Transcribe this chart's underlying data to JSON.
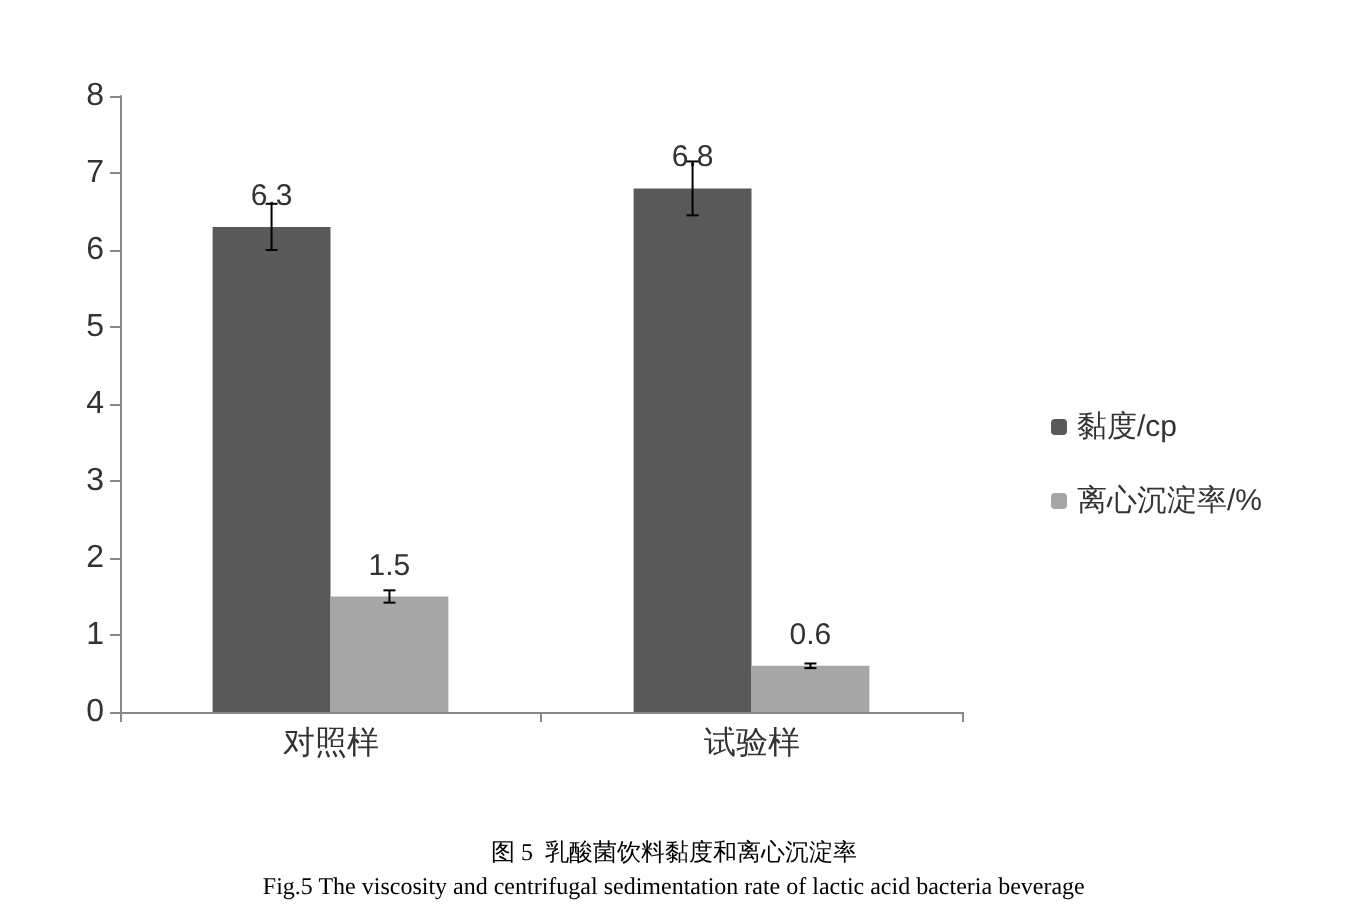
{
  "chart_data": {
    "type": "bar",
    "categories": [
      "对照样",
      "试验样"
    ],
    "series": [
      {
        "name": "黏度/cp",
        "color": "#595959",
        "values": [
          6.3,
          6.8
        ],
        "errors": [
          0.3,
          0.35
        ]
      },
      {
        "name": "离心沉淀率/%",
        "color": "#a6a6a6",
        "values": [
          1.5,
          0.6
        ],
        "errors": [
          0.08,
          0.03
        ]
      }
    ],
    "ylim": [
      0,
      8
    ],
    "yticks": [
      0,
      1,
      2,
      3,
      4,
      5,
      6,
      7,
      8
    ],
    "grid": false,
    "legend": "right",
    "data_labels": true,
    "annotations": [
      "图 5  乳酸菌饮料黏度和离心沉淀率",
      "Fig.5 The viscosity and centrifugal sedimentation rate of lactic acid bacteria beverage"
    ]
  }
}
